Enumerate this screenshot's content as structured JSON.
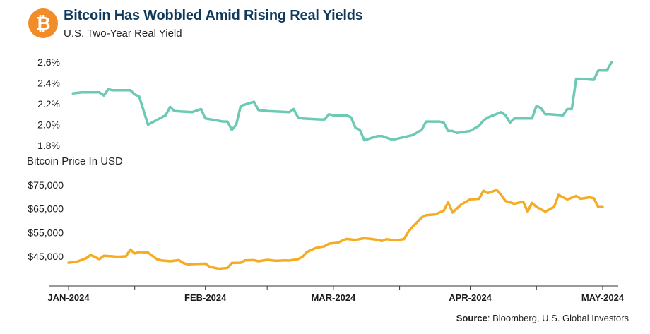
{
  "header": {
    "title": "Bitcoin Has Wobbled Amid Rising Real Yields",
    "subtitle": "U.S. Two-Year Real Yield",
    "logo_icon": "bitcoin-icon"
  },
  "source": {
    "label": "Source",
    "text": ": Bloomberg, U.S. Global Investors"
  },
  "colors": {
    "yield_line": "#6cc9b5",
    "btc_line": "#f5ac22",
    "logo": "#f28c28",
    "title": "#0f3a5c"
  },
  "chart_data": [
    {
      "type": "line",
      "title": "U.S. Two-Year Real Yield",
      "ylim": [
        1.8,
        2.6
      ],
      "yticks": [
        "1.8%",
        "2.0%",
        "2.2%",
        "2.4%",
        "2.6%"
      ],
      "ytick_values": [
        1.8,
        2.0,
        2.2,
        2.4,
        2.6
      ],
      "grid": false,
      "series": [
        {
          "color": "#6cc9b5",
          "points": [
            [
              "2024-01-02",
              2.3
            ],
            [
              "2024-01-04",
              2.31
            ],
            [
              "2024-01-08",
              2.31
            ],
            [
              "2024-01-09",
              2.28
            ],
            [
              "2024-01-10",
              2.34
            ],
            [
              "2024-01-11",
              2.33
            ],
            [
              "2024-01-15",
              2.33
            ],
            [
              "2024-01-16",
              2.29
            ],
            [
              "2024-01-17",
              2.27
            ],
            [
              "2024-01-19",
              2.0
            ],
            [
              "2024-01-23",
              2.09
            ],
            [
              "2024-01-24",
              2.17
            ],
            [
              "2024-01-25",
              2.13
            ],
            [
              "2024-01-29",
              2.12
            ],
            [
              "2024-01-31",
              2.15
            ],
            [
              "2024-02-01",
              2.06
            ],
            [
              "2024-02-05",
              2.03
            ],
            [
              "2024-02-06",
              2.03
            ],
            [
              "2024-02-07",
              1.95
            ],
            [
              "2024-02-08",
              2.0
            ],
            [
              "2024-02-09",
              2.18
            ],
            [
              "2024-02-12",
              2.22
            ],
            [
              "2024-02-13",
              2.14
            ],
            [
              "2024-02-15",
              2.13
            ],
            [
              "2024-02-20",
              2.12
            ],
            [
              "2024-02-21",
              2.15
            ],
            [
              "2024-02-22",
              2.07
            ],
            [
              "2024-02-23",
              2.06
            ],
            [
              "2024-02-27",
              2.05
            ],
            [
              "2024-02-28",
              2.05
            ],
            [
              "2024-02-29",
              2.1
            ],
            [
              "2024-03-01",
              2.09
            ],
            [
              "2024-03-04",
              2.09
            ],
            [
              "2024-03-05",
              2.07
            ],
            [
              "2024-03-06",
              1.97
            ],
            [
              "2024-03-07",
              1.95
            ],
            [
              "2024-03-08",
              1.85
            ],
            [
              "2024-03-11",
              1.89
            ],
            [
              "2024-03-12",
              1.89
            ],
            [
              "2024-03-14",
              1.86
            ],
            [
              "2024-03-15",
              1.86
            ],
            [
              "2024-03-19",
              1.9
            ],
            [
              "2024-03-21",
              1.95
            ],
            [
              "2024-03-22",
              2.03
            ],
            [
              "2024-03-25",
              2.03
            ],
            [
              "2024-03-26",
              2.02
            ],
            [
              "2024-03-27",
              1.94
            ],
            [
              "2024-03-28",
              1.94
            ],
            [
              "2024-03-29",
              1.92
            ],
            [
              "2024-04-01",
              1.94
            ],
            [
              "2024-04-03",
              1.99
            ],
            [
              "2024-04-04",
              2.04
            ],
            [
              "2024-04-05",
              2.07
            ],
            [
              "2024-04-08",
              2.12
            ],
            [
              "2024-04-09",
              2.09
            ],
            [
              "2024-04-10",
              2.02
            ],
            [
              "2024-04-11",
              2.06
            ],
            [
              "2024-04-15",
              2.06
            ],
            [
              "2024-04-16",
              2.18
            ],
            [
              "2024-04-17",
              2.16
            ],
            [
              "2024-04-18",
              2.1
            ],
            [
              "2024-04-19",
              2.1
            ],
            [
              "2024-04-22",
              2.09
            ],
            [
              "2024-04-23",
              2.15
            ],
            [
              "2024-04-24",
              2.15
            ],
            [
              "2024-04-25",
              2.44
            ],
            [
              "2024-04-26",
              2.44
            ],
            [
              "2024-04-29",
              2.43
            ],
            [
              "2024-04-30",
              2.52
            ],
            [
              "2024-05-01",
              2.52
            ],
            [
              "2024-05-02",
              2.52
            ],
            [
              "2024-05-03",
              2.6
            ]
          ]
        }
      ]
    },
    {
      "type": "line",
      "title": "Bitcoin Price In USD",
      "ylim": [
        40000,
        75000
      ],
      "yticks": [
        "$45,000",
        "$55,000",
        "$65,000",
        "$75,000"
      ],
      "ytick_values": [
        45000,
        55000,
        65000,
        75000
      ],
      "xticks": [
        "JAN-2024",
        "FEB-2024",
        "MAR-2024",
        "APR-2024",
        "MAY-2024"
      ],
      "xtick_dates": [
        "2024-01-01",
        "2024-02-01",
        "2024-03-01",
        "2024-04-01",
        "2024-05-01"
      ],
      "xlim": [
        "2024-01-01",
        "2024-05-01"
      ],
      "grid": false,
      "series": [
        {
          "color": "#f5ac22",
          "points": [
            [
              "2024-01-01",
              42300
            ],
            [
              "2024-01-03",
              42800
            ],
            [
              "2024-01-05",
              44200
            ],
            [
              "2024-01-06",
              45600
            ],
            [
              "2024-01-08",
              43800
            ],
            [
              "2024-01-09",
              45200
            ],
            [
              "2024-01-11",
              45000
            ],
            [
              "2024-01-12",
              44800
            ],
            [
              "2024-01-14",
              45000
            ],
            [
              "2024-01-15",
              47800
            ],
            [
              "2024-01-16",
              46200
            ],
            [
              "2024-01-17",
              46800
            ],
            [
              "2024-01-19",
              46600
            ],
            [
              "2024-01-21",
              43800
            ],
            [
              "2024-01-22",
              43300
            ],
            [
              "2024-01-24",
              42900
            ],
            [
              "2024-01-26",
              43400
            ],
            [
              "2024-01-27",
              42200
            ],
            [
              "2024-01-28",
              41600
            ],
            [
              "2024-01-30",
              41800
            ],
            [
              "2024-02-01",
              41900
            ],
            [
              "2024-02-02",
              40600
            ],
            [
              "2024-02-04",
              39800
            ],
            [
              "2024-02-06",
              40100
            ],
            [
              "2024-02-07",
              42200
            ],
            [
              "2024-02-09",
              42300
            ],
            [
              "2024-02-10",
              43300
            ],
            [
              "2024-02-12",
              43400
            ],
            [
              "2024-02-13",
              42900
            ],
            [
              "2024-02-15",
              43500
            ],
            [
              "2024-02-17",
              43100
            ],
            [
              "2024-02-19",
              43300
            ],
            [
              "2024-02-20",
              43200
            ],
            [
              "2024-02-22",
              43800
            ],
            [
              "2024-02-23",
              44800
            ],
            [
              "2024-02-24",
              46800
            ],
            [
              "2024-02-26",
              48500
            ],
            [
              "2024-02-28",
              49200
            ],
            [
              "2024-02-29",
              50300
            ],
            [
              "2024-03-02",
              50700
            ],
            [
              "2024-03-03",
              51600
            ],
            [
              "2024-03-04",
              52300
            ],
            [
              "2024-03-06",
              51900
            ],
            [
              "2024-03-08",
              52600
            ],
            [
              "2024-03-10",
              52200
            ],
            [
              "2024-03-11",
              51900
            ],
            [
              "2024-03-12",
              51400
            ],
            [
              "2024-03-13",
              52200
            ],
            [
              "2024-03-15",
              51700
            ],
            [
              "2024-03-17",
              52200
            ],
            [
              "2024-03-18",
              55400
            ],
            [
              "2024-03-19",
              57500
            ],
            [
              "2024-03-21",
              61300
            ],
            [
              "2024-03-22",
              62300
            ],
            [
              "2024-03-24",
              62600
            ],
            [
              "2024-03-26",
              64200
            ],
            [
              "2024-03-27",
              67700
            ],
            [
              "2024-03-28",
              63400
            ],
            [
              "2024-03-30",
              66900
            ],
            [
              "2024-03-31",
              67900
            ],
            [
              "2024-04-01",
              69000
            ],
            [
              "2024-04-03",
              69200
            ],
            [
              "2024-04-04",
              72600
            ],
            [
              "2024-04-05",
              71600
            ],
            [
              "2024-04-07",
              72900
            ],
            [
              "2024-04-08",
              70800
            ],
            [
              "2024-04-09",
              68300
            ],
            [
              "2024-04-11",
              67100
            ],
            [
              "2024-04-13",
              68000
            ],
            [
              "2024-04-14",
              63800
            ],
            [
              "2024-04-15",
              67500
            ],
            [
              "2024-04-16",
              65800
            ],
            [
              "2024-04-18",
              63800
            ],
            [
              "2024-04-20",
              65800
            ],
            [
              "2024-04-21",
              70800
            ],
            [
              "2024-04-23",
              68900
            ],
            [
              "2024-04-25",
              70400
            ],
            [
              "2024-04-26",
              69200
            ],
            [
              "2024-04-28",
              69800
            ],
            [
              "2024-04-29",
              69400
            ],
            [
              "2024-04-30",
              65700
            ],
            [
              "2024-05-01",
              65700
            ]
          ]
        }
      ]
    }
  ]
}
